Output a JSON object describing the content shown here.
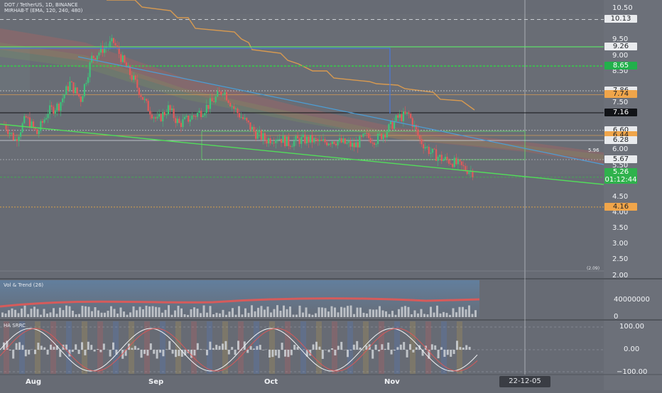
{
  "header": {
    "symbol_line": "DOT / TetherUS, 1D, BINANCE",
    "indicator_line": "MIRHAB-T (EMA, 120, 240, 480)"
  },
  "panes": {
    "volume_title": "Vol & Trend (26)",
    "oscillator_title": "HA SRRC"
  },
  "price_axis": {
    "ticks": [
      "10.50",
      "9.50",
      "9.00",
      "8.50",
      "7.50",
      "6.00",
      "5.50",
      "4.50",
      "4.00",
      "3.50",
      "3.00",
      "2.50",
      "2.00"
    ]
  },
  "price_tags": [
    {
      "value": "10.13",
      "bg": "#e9ebee",
      "fg": "#1e2126"
    },
    {
      "value": "9.26",
      "bg": "#e9ebee",
      "fg": "#1e2126"
    },
    {
      "value": "8.65",
      "bg": "#22b04b",
      "fg": "#ffffff"
    },
    {
      "value": "7.86",
      "bg": "#e9ebee",
      "fg": "#1e2126"
    },
    {
      "value": "7.74",
      "bg": "#f0a54a",
      "fg": "#1e2126"
    },
    {
      "value": "7.16",
      "bg": "#111317",
      "fg": "#ffffff"
    },
    {
      "value": "6.60",
      "bg": "#e9ebee",
      "fg": "#1e2126"
    },
    {
      "value": "6.44",
      "bg": "#f0a54a",
      "fg": "#1e2126"
    },
    {
      "value": "6.28",
      "bg": "#e9ebee",
      "fg": "#1e2126"
    },
    {
      "value": "5.67",
      "bg": "#e9ebee",
      "fg": "#1e2126"
    },
    {
      "value": "5.11",
      "bg": "#111317",
      "fg": "#ffffff"
    },
    {
      "value": "4.16",
      "bg": "#f0a54a",
      "fg": "#1e2126"
    }
  ],
  "last_price": {
    "value": "5.26",
    "countdown": "01:12:44",
    "bg": "#2fb24c"
  },
  "annotations": {
    "trend_value": "5.96",
    "low_marker": "(2.09)"
  },
  "volume_axis": {
    "ticks": [
      "40000000",
      "0"
    ]
  },
  "oscillator_axis": {
    "ticks": [
      "100.00",
      "0.00",
      "−100.00"
    ]
  },
  "time_axis": {
    "labels": [
      "Aug",
      "Sep",
      "Oct",
      "Nov"
    ],
    "cursor_label": "22-12-05"
  },
  "chart_data": {
    "type": "line",
    "title": "DOT / TetherUS, 1D, BINANCE",
    "xlabel": "",
    "ylabel": "",
    "ylim": [
      1.9,
      10.75
    ],
    "x_labels": [
      "Aug",
      "Sep",
      "Oct",
      "Nov"
    ],
    "series": [
      {
        "name": "DOT / TetherUS",
        "values": [
          6.8,
          6.3,
          7.0,
          6.5,
          7.2,
          7.4,
          8.1,
          7.6,
          8.9,
          9.2,
          9.4,
          8.7,
          8.1,
          7.4,
          6.9,
          7.3,
          6.8,
          7.0,
          7.2,
          7.5,
          7.9,
          7.3,
          6.9,
          6.5,
          6.3,
          6.4,
          6.2,
          6.3,
          6.3,
          6.2,
          6.3,
          6.2,
          6.1,
          6.4,
          6.3,
          6.6,
          7.0,
          7.1,
          6.3,
          5.9,
          5.7,
          5.6,
          5.4,
          5.26
        ]
      }
    ],
    "levels": [
      10.13,
      9.26,
      8.65,
      7.86,
      7.74,
      7.16,
      6.6,
      6.44,
      6.28,
      5.67,
      5.11,
      4.16
    ],
    "last_price": 5.26,
    "volume_ticks": [
      40000000,
      0
    ],
    "oscillator_ticks": [
      100,
      0,
      -100
    ]
  }
}
